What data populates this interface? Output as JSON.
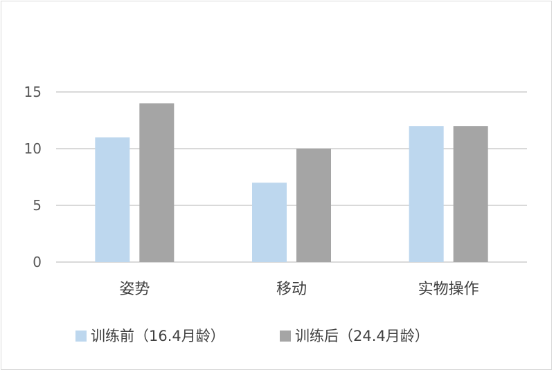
{
  "chart_data": {
    "type": "bar",
    "categories": [
      "姿势",
      "移动",
      "实物操作"
    ],
    "series": [
      {
        "name": "训练前（16.4月龄）",
        "values": [
          11,
          7,
          12
        ],
        "color": "#bdd7ee"
      },
      {
        "name": "训练后（24.4月龄）",
        "values": [
          14,
          10,
          12
        ],
        "color": "#a5a5a5"
      }
    ],
    "title": "",
    "xlabel": "",
    "ylabel": "",
    "ylim": [
      0,
      15
    ],
    "yticks": [
      0,
      5,
      10,
      15
    ],
    "grid": true,
    "legend": "bottom",
    "colors": {
      "gridline": "#d9d9d9",
      "frame": "#d9d9d9",
      "text": "#595959"
    }
  }
}
